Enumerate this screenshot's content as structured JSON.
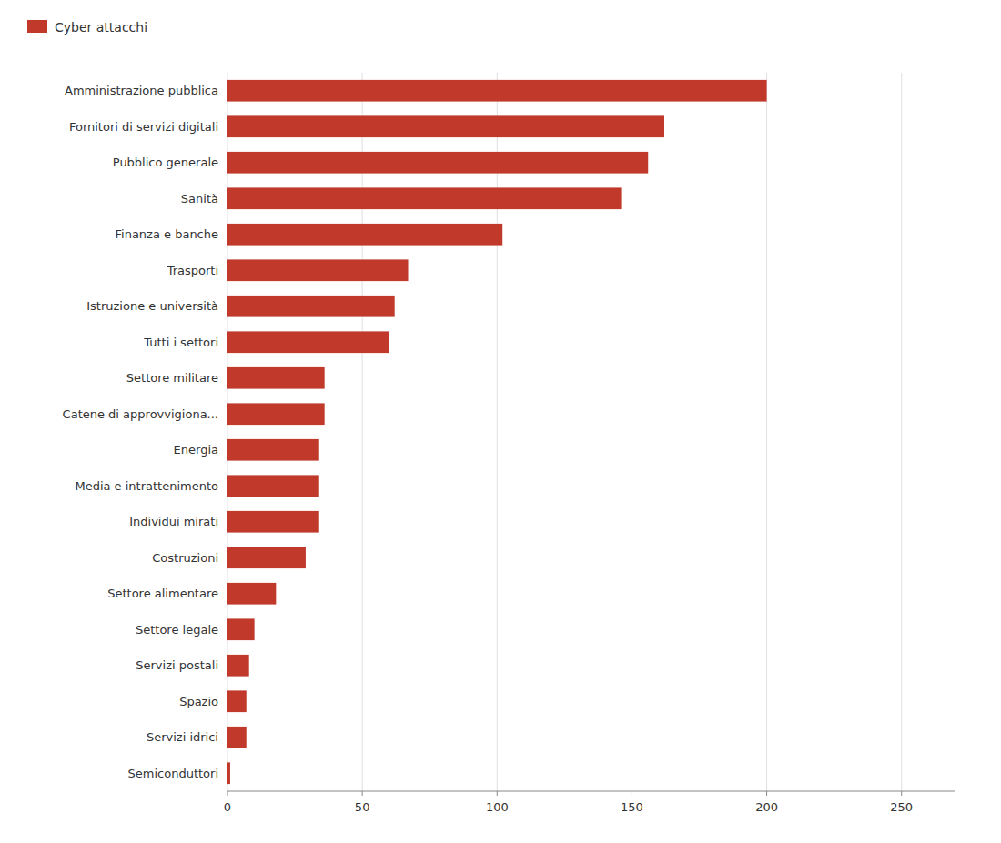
{
  "chart_data": {
    "type": "bar",
    "orientation": "horizontal",
    "categories": [
      "Amministrazione pubblica",
      "Fornitori di servizi digitali",
      "Pubblico generale",
      "Sanità",
      "Finanza e banche",
      "Trasporti",
      "Istruzione e università",
      "Tutti i settori",
      "Settore militare",
      "Catene di approvvigiona...",
      "Energia",
      "Media e intrattenimento",
      "Individui mirati",
      "Costruzioni",
      "Settore alimentare",
      "Settore legale",
      "Servizi postali",
      "Spazio",
      "Servizi idrici",
      "Semiconduttori"
    ],
    "series": [
      {
        "name": "Cyber attacchi",
        "color": "#c0392b",
        "values": [
          200,
          162,
          156,
          146,
          102,
          67,
          62,
          60,
          36,
          36,
          34,
          34,
          34,
          29,
          18,
          10,
          8,
          7,
          7,
          1
        ]
      }
    ],
    "xlim": [
      0,
      270
    ],
    "xticks": [
      0,
      50,
      100,
      150,
      200,
      250
    ],
    "grid": true,
    "legend": "upper left"
  }
}
